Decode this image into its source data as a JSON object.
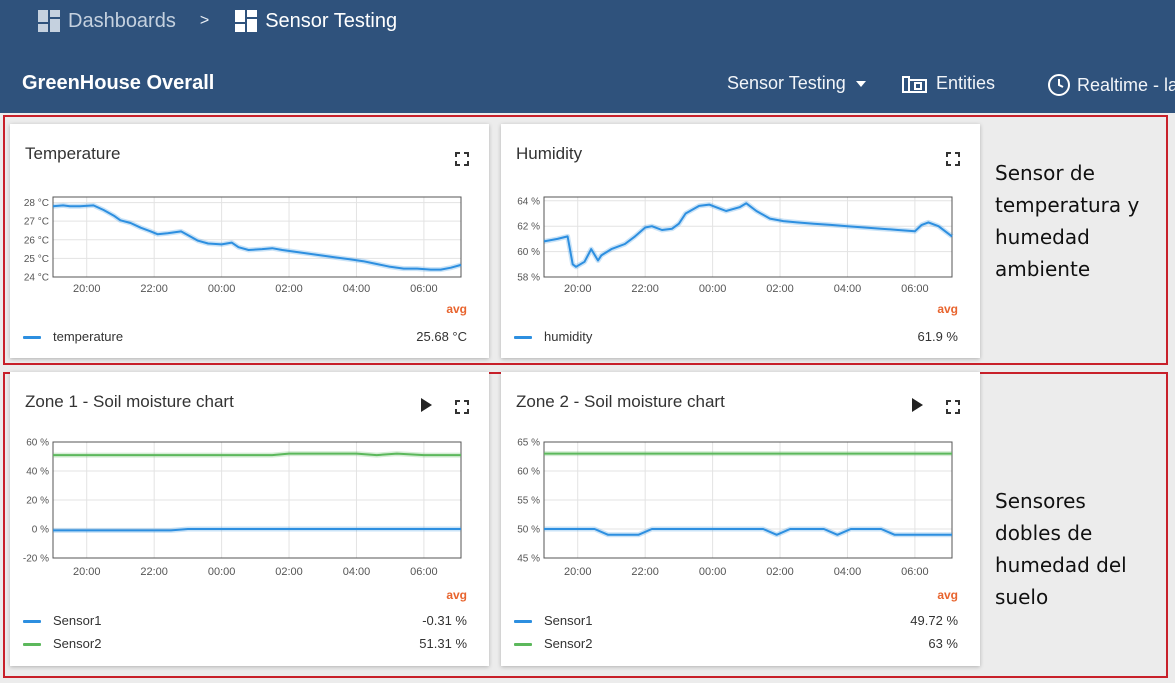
{
  "breadcrumb": {
    "root": "Dashboards",
    "separator": ">",
    "current": "Sensor Testing"
  },
  "header": {
    "dashboard_title": "GreenHouse Overall",
    "state_selector": "Sensor Testing",
    "entities_label": "Entities",
    "timewindow_label": "Realtime - la"
  },
  "annotations": {
    "top": "Sensor de\ntemperatura y\nhumedad\nambiente",
    "bottom": "Sensores\ndobles de\nhumedad del\nsuelo"
  },
  "widgets": [
    {
      "title": "Temperature",
      "avg_label": "avg",
      "legend": [
        {
          "name": "temperature",
          "value": "25.68 °C",
          "color": "#2d8fe0"
        }
      ]
    },
    {
      "title": "Humidity",
      "avg_label": "avg",
      "legend": [
        {
          "name": "humidity",
          "value": "61.9 %",
          "color": "#2d8fe0"
        }
      ]
    },
    {
      "title": "Zone 1 - Soil moisture chart",
      "avg_label": "avg",
      "legend": [
        {
          "name": "Sensor1",
          "value": "-0.31 %",
          "color": "#2d8fe0"
        },
        {
          "name": "Sensor2",
          "value": "51.31 %",
          "color": "#5cb85c"
        }
      ]
    },
    {
      "title": "Zone 2 - Soil moisture chart",
      "avg_label": "avg",
      "legend": [
        {
          "name": "Sensor1",
          "value": "49.72 %",
          "color": "#2d8fe0"
        },
        {
          "name": "Sensor2",
          "value": "63 %",
          "color": "#5cb85c"
        }
      ]
    }
  ],
  "chart_data": [
    {
      "type": "line",
      "x_ticks": [
        "20:00",
        "22:00",
        "00:00",
        "02:00",
        "04:00",
        "06:00"
      ],
      "x_range": [
        19.0,
        31.1
      ],
      "y_ticks": [
        "24 °C",
        "25 °C",
        "26 °C",
        "27 °C",
        "28 °C"
      ],
      "ylim": [
        24,
        28.3
      ],
      "grid": true,
      "series": [
        {
          "name": "temperature",
          "color": "#2d8fe0",
          "x": [
            19.0,
            19.3,
            19.5,
            19.8,
            20.2,
            20.5,
            20.8,
            21.0,
            21.3,
            21.6,
            21.9,
            22.1,
            22.4,
            22.8,
            23.0,
            23.3,
            23.6,
            24.0,
            24.3,
            24.5,
            24.8,
            25.2,
            25.5,
            25.8,
            26.2,
            26.6,
            27.0,
            27.4,
            27.8,
            28.2,
            28.6,
            29.0,
            29.4,
            29.8,
            30.2,
            30.5,
            30.8,
            31.1
          ],
          "y": [
            27.8,
            27.85,
            27.8,
            27.8,
            27.85,
            27.6,
            27.3,
            27.05,
            26.9,
            26.65,
            26.45,
            26.3,
            26.35,
            26.45,
            26.25,
            25.95,
            25.8,
            25.75,
            25.85,
            25.6,
            25.45,
            25.5,
            25.55,
            25.45,
            25.35,
            25.25,
            25.15,
            25.05,
            24.95,
            24.85,
            24.7,
            24.55,
            24.45,
            24.45,
            24.4,
            24.4,
            24.5,
            24.65
          ]
        }
      ]
    },
    {
      "type": "line",
      "x_ticks": [
        "20:00",
        "22:00",
        "00:00",
        "02:00",
        "04:00",
        "06:00"
      ],
      "x_range": [
        19.0,
        31.1
      ],
      "y_ticks": [
        "58 %",
        "60 %",
        "62 %",
        "64 %"
      ],
      "ylim": [
        58,
        64.3
      ],
      "grid": true,
      "series": [
        {
          "name": "humidity",
          "color": "#2d8fe0",
          "x": [
            19.0,
            19.4,
            19.7,
            19.85,
            19.95,
            20.2,
            20.4,
            20.6,
            20.7,
            21.0,
            21.4,
            21.7,
            22.0,
            22.2,
            22.5,
            22.8,
            23.0,
            23.2,
            23.6,
            23.9,
            24.2,
            24.4,
            24.8,
            25.0,
            25.3,
            25.7,
            26.1,
            26.5,
            27.0,
            27.5,
            28.0,
            28.5,
            29.0,
            29.5,
            30.0,
            30.2,
            30.4,
            30.7,
            31.1
          ],
          "y": [
            60.8,
            61.0,
            61.2,
            59.0,
            58.8,
            59.2,
            60.2,
            59.3,
            59.7,
            60.2,
            60.6,
            61.2,
            61.9,
            62.0,
            61.7,
            61.8,
            62.2,
            63.0,
            63.6,
            63.7,
            63.4,
            63.2,
            63.5,
            63.8,
            63.2,
            62.6,
            62.4,
            62.3,
            62.2,
            62.1,
            62.0,
            61.9,
            61.8,
            61.7,
            61.6,
            62.1,
            62.3,
            62.0,
            61.2
          ]
        }
      ]
    },
    {
      "type": "line",
      "x_ticks": [
        "20:00",
        "22:00",
        "00:00",
        "02:00",
        "04:00",
        "06:00"
      ],
      "x_range": [
        19.0,
        31.1
      ],
      "y_ticks": [
        "-20 %",
        "0 %",
        "20 %",
        "40 %",
        "60 %"
      ],
      "ylim": [
        -20,
        60
      ],
      "grid": true,
      "series": [
        {
          "name": "Sensor1",
          "color": "#2d8fe0",
          "x": [
            19.0,
            22.5,
            23.0,
            31.1
          ],
          "y": [
            -1,
            -1,
            0,
            0
          ]
        },
        {
          "name": "Sensor2",
          "color": "#5cb85c",
          "x": [
            19.0,
            20.5,
            24.0,
            25.5,
            26.0,
            28.0,
            28.6,
            29.2,
            30.0,
            31.1
          ],
          "y": [
            51,
            51,
            51,
            51,
            52,
            52,
            51,
            52,
            51,
            51
          ]
        }
      ]
    },
    {
      "type": "line",
      "x_ticks": [
        "20:00",
        "22:00",
        "00:00",
        "02:00",
        "04:00",
        "06:00"
      ],
      "x_range": [
        19.0,
        31.1
      ],
      "y_ticks": [
        "45 %",
        "50 %",
        "55 %",
        "60 %",
        "65 %"
      ],
      "ylim": [
        45,
        65
      ],
      "grid": true,
      "series": [
        {
          "name": "Sensor1",
          "color": "#2d8fe0",
          "x": [
            19.0,
            20.5,
            20.9,
            21.8,
            22.2,
            25.5,
            25.9,
            26.3,
            27.3,
            27.7,
            28.1,
            29.0,
            29.4,
            31.1
          ],
          "y": [
            50,
            50,
            49,
            49,
            50,
            50,
            49,
            50,
            50,
            49,
            50,
            50,
            49,
            49
          ]
        },
        {
          "name": "Sensor2",
          "color": "#5cb85c",
          "x": [
            19.0,
            31.1
          ],
          "y": [
            63,
            63
          ]
        }
      ]
    }
  ]
}
